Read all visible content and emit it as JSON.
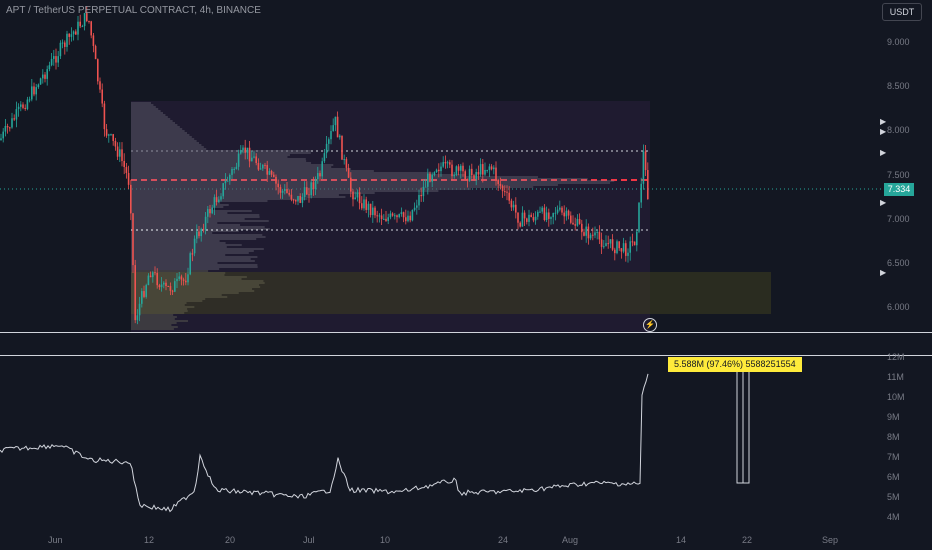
{
  "header": {
    "title": "APT / TetherUS PERPETUAL CONTRACT, 4h, BINANCE"
  },
  "toolbar": {
    "unit_label": "USDT"
  },
  "price_axis": {
    "ticks": [
      "9.000",
      "8.500",
      "8.000",
      "7.500",
      "7.000",
      "6.500",
      "6.000"
    ],
    "current_price": "7.334"
  },
  "volume_axis": {
    "ticks": [
      "12M",
      "11M",
      "10M",
      "9M",
      "8M",
      "7M",
      "6M",
      "5M",
      "4M"
    ],
    "callout": "5.588M (97.46%) 5588251554"
  },
  "time_axis": {
    "labels": [
      "Jun",
      "12",
      "20",
      "Jul",
      "10",
      "24",
      "Aug",
      "14",
      "22",
      "Sep"
    ]
  },
  "colors": {
    "background": "#131722",
    "up": "#26a69a",
    "down": "#ef5350",
    "poc": "#f23645",
    "volume_line": "#d1d4dc",
    "callout": "#ffeb3b"
  },
  "icons": {
    "replay": "lightning-bolt-icon",
    "scale_arrows": "triangle-right-icon"
  }
}
